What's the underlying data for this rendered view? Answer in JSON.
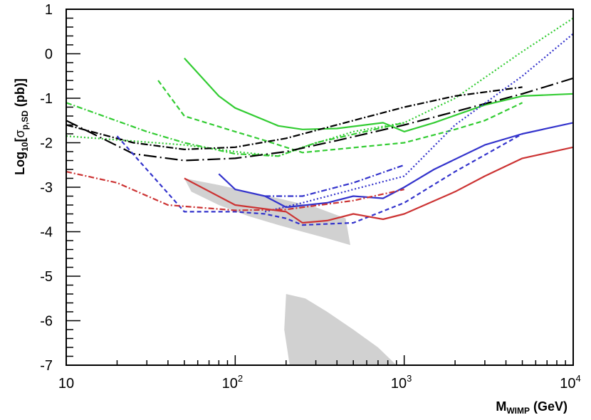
{
  "chart_data": {
    "type": "line",
    "x_scale": "log10",
    "xlim": [
      10,
      10000
    ],
    "ylim": [
      -7,
      1
    ],
    "grid": false,
    "legend": "none",
    "xlabel": {
      "main": "M",
      "sub": "WIMP",
      "unit": " (GeV)"
    },
    "ylabel": {
      "pre": "Log",
      "sub10": "10",
      "bracket_open": "[",
      "sigma": "σ",
      "sub": "p,SD",
      "post": " (pb)]"
    },
    "x_ticks": [
      {
        "value": 10,
        "label": "10",
        "sup": ""
      },
      {
        "value": 100,
        "label": "10",
        "sup": "2"
      },
      {
        "value": 1000,
        "label": "10",
        "sup": "3"
      },
      {
        "value": 10000,
        "label": "10",
        "sup": "4"
      }
    ],
    "y_ticks": [
      {
        "value": 1,
        "label": "1"
      },
      {
        "value": 0,
        "label": "0"
      },
      {
        "value": -1,
        "label": "-1"
      },
      {
        "value": -2,
        "label": "-2"
      },
      {
        "value": -3,
        "label": "-3"
      },
      {
        "value": -4,
        "label": "-4"
      },
      {
        "value": -5,
        "label": "-5"
      },
      {
        "value": -6,
        "label": "-6"
      },
      {
        "value": -7,
        "label": "-7"
      }
    ],
    "regions": [
      {
        "name": "model-scan-upper",
        "color": "#cccccc",
        "points": [
          [
            50,
            -2.8
          ],
          [
            80,
            -2.95
          ],
          [
            120,
            -3.1
          ],
          [
            180,
            -3.25
          ],
          [
            300,
            -3.45
          ],
          [
            450,
            -3.7
          ],
          [
            480,
            -4.3
          ],
          [
            350,
            -4.15
          ],
          [
            250,
            -4.0
          ],
          [
            180,
            -3.85
          ],
          [
            120,
            -3.65
          ],
          [
            80,
            -3.4
          ],
          [
            55,
            -3.1
          ]
        ]
      },
      {
        "name": "model-scan-lower",
        "color": "#cccccc",
        "points": [
          [
            200,
            -5.4
          ],
          [
            260,
            -5.5
          ],
          [
            350,
            -5.8
          ],
          [
            500,
            -6.2
          ],
          [
            700,
            -6.6
          ],
          [
            900,
            -7.0
          ],
          [
            210,
            -7.0
          ],
          [
            195,
            -6.2
          ]
        ]
      }
    ],
    "series": [
      {
        "name": "green-solid",
        "color": "#33cc33",
        "dash": "",
        "points": [
          [
            50,
            -0.1
          ],
          [
            80,
            -0.95
          ],
          [
            100,
            -1.22
          ],
          [
            180,
            -1.62
          ],
          [
            250,
            -1.7
          ],
          [
            400,
            -1.68
          ],
          [
            750,
            -1.55
          ],
          [
            1000,
            -1.75
          ],
          [
            1500,
            -1.55
          ],
          [
            3000,
            -1.15
          ],
          [
            5000,
            -0.95
          ],
          [
            10000,
            -0.9
          ]
        ]
      },
      {
        "name": "green-dashed",
        "color": "#33cc33",
        "dash": "7,4",
        "points": [
          [
            35,
            -0.6
          ],
          [
            50,
            -1.4
          ],
          [
            100,
            -1.75
          ],
          [
            150,
            -1.95
          ],
          [
            250,
            -2.22
          ],
          [
            1000,
            -2.0
          ],
          [
            2000,
            -1.7
          ],
          [
            3000,
            -1.5
          ],
          [
            5000,
            -1.1
          ]
        ]
      },
      {
        "name": "green-dotted",
        "color": "#33cc33",
        "dash": "2,3",
        "points": [
          [
            10,
            -1.85
          ],
          [
            50,
            -2.05
          ],
          [
            100,
            -2.2
          ],
          [
            180,
            -2.3
          ],
          [
            250,
            -2.1
          ],
          [
            500,
            -1.75
          ],
          [
            1000,
            -1.55
          ],
          [
            2000,
            -1.0
          ],
          [
            5000,
            0.05
          ],
          [
            10000,
            0.8
          ]
        ]
      },
      {
        "name": "green-dashdot",
        "color": "#33cc33",
        "dash": "8,3,2,3",
        "points": [
          [
            10,
            -1.1
          ],
          [
            30,
            -1.75
          ],
          [
            50,
            -2.0
          ],
          [
            100,
            -2.25
          ],
          [
            180,
            -2.3
          ],
          [
            300,
            -2.0
          ],
          [
            1000,
            -1.55
          ]
        ]
      },
      {
        "name": "black-dashdot",
        "color": "#000000",
        "dash": "10,3,2,3",
        "points": [
          [
            10,
            -1.6
          ],
          [
            25,
            -2.0
          ],
          [
            50,
            -2.15
          ],
          [
            100,
            -2.1
          ],
          [
            200,
            -1.9
          ],
          [
            500,
            -1.5
          ],
          [
            1000,
            -1.2
          ],
          [
            2000,
            -0.95
          ],
          [
            5000,
            -0.75
          ]
        ]
      },
      {
        "name": "black-longdash",
        "color": "#000000",
        "dash": "18,5,2,5",
        "points": [
          [
            10,
            -1.5
          ],
          [
            25,
            -2.25
          ],
          [
            50,
            -2.4
          ],
          [
            100,
            -2.35
          ],
          [
            200,
            -2.2
          ],
          [
            400,
            -1.95
          ],
          [
            1000,
            -1.6
          ],
          [
            2000,
            -1.3
          ],
          [
            5000,
            -0.9
          ],
          [
            10000,
            -0.55
          ]
        ]
      },
      {
        "name": "blue-solid",
        "color": "#3333cc",
        "dash": "",
        "points": [
          [
            80,
            -2.7
          ],
          [
            100,
            -3.05
          ],
          [
            150,
            -3.2
          ],
          [
            200,
            -3.45
          ],
          [
            350,
            -3.35
          ],
          [
            500,
            -3.2
          ],
          [
            750,
            -3.25
          ],
          [
            1000,
            -3.0
          ],
          [
            1500,
            -2.6
          ],
          [
            3000,
            -2.05
          ],
          [
            5000,
            -1.8
          ],
          [
            10000,
            -1.55
          ]
        ]
      },
      {
        "name": "blue-dashed",
        "color": "#3333cc",
        "dash": "6,4",
        "points": [
          [
            20,
            -1.85
          ],
          [
            50,
            -3.55
          ],
          [
            100,
            -3.55
          ],
          [
            150,
            -3.6
          ],
          [
            200,
            -3.7
          ],
          [
            250,
            -3.85
          ],
          [
            500,
            -3.8
          ],
          [
            1000,
            -3.35
          ],
          [
            2000,
            -2.65
          ],
          [
            5000,
            -1.8
          ]
        ]
      },
      {
        "name": "blue-dotted",
        "color": "#3333cc",
        "dash": "2,3",
        "points": [
          [
            150,
            -3.55
          ],
          [
            250,
            -3.35
          ],
          [
            500,
            -3.05
          ],
          [
            1000,
            -2.75
          ],
          [
            2000,
            -1.6
          ],
          [
            5000,
            -0.5
          ],
          [
            10000,
            0.45
          ]
        ]
      },
      {
        "name": "blue-dashdot",
        "color": "#3333cc",
        "dash": "8,3,2,3",
        "points": [
          [
            150,
            -3.2
          ],
          [
            250,
            -3.2
          ],
          [
            500,
            -2.9
          ],
          [
            1000,
            -2.5
          ]
        ]
      },
      {
        "name": "red-solid",
        "color": "#cc3333",
        "dash": "",
        "points": [
          [
            50,
            -2.8
          ],
          [
            100,
            -3.4
          ],
          [
            200,
            -3.55
          ],
          [
            250,
            -3.8
          ],
          [
            350,
            -3.75
          ],
          [
            500,
            -3.6
          ],
          [
            750,
            -3.72
          ],
          [
            1000,
            -3.6
          ],
          [
            2000,
            -3.1
          ],
          [
            3000,
            -2.75
          ],
          [
            5000,
            -2.35
          ],
          [
            10000,
            -2.1
          ]
        ]
      },
      {
        "name": "red-dashdot",
        "color": "#cc3333",
        "dash": "8,3,2,3",
        "points": [
          [
            10,
            -2.65
          ],
          [
            20,
            -2.9
          ],
          [
            40,
            -3.4
          ],
          [
            100,
            -3.52
          ],
          [
            200,
            -3.5
          ],
          [
            500,
            -3.3
          ],
          [
            1000,
            -3.05
          ]
        ]
      }
    ]
  }
}
